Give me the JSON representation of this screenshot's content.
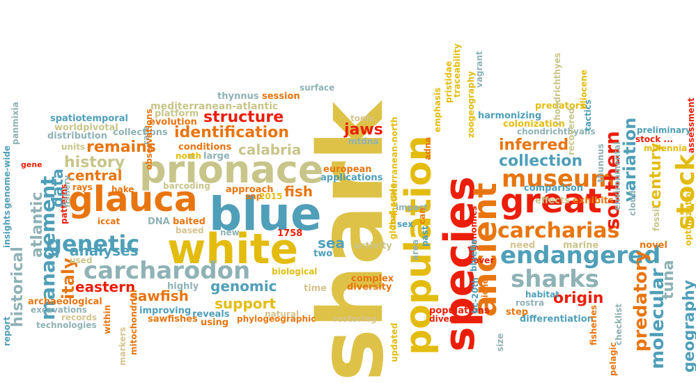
{
  "palette": {
    "yellow": "#E3BC0F",
    "mustard": "#DDC247",
    "orange": "#E8750F",
    "red": "#EB1E09",
    "teal": "#4F9FB8",
    "grayblue": "#8FB2B5",
    "khaki": "#C8C58A",
    "tan": "#D5C48F",
    "darkorange": "#D6640E",
    "slate": "#9FB6C0"
  },
  "words": [
    {
      "text": "shark",
      "color": "#DDC247",
      "rot": -90
    },
    {
      "text": "white",
      "color": "#E3BC0F",
      "rot": 0
    },
    {
      "text": "species",
      "color": "#EB1E09",
      "rot": -90
    },
    {
      "text": "prionace",
      "color": "#C8C58A",
      "rot": 0
    },
    {
      "text": "blue",
      "color": "#4F9FB8",
      "rot": 0
    },
    {
      "text": "glauca",
      "color": "#E8750F",
      "rot": 0
    },
    {
      "text": "population",
      "color": "#E3BC0F",
      "rot": -90
    },
    {
      "text": "great",
      "color": "#EB1E09",
      "rot": 0
    },
    {
      "text": "ancient",
      "color": "#E8750F",
      "rot": -90
    },
    {
      "text": "carcharodon",
      "color": "#8FB2B5",
      "rot": 0
    },
    {
      "text": "management",
      "color": "#4F9FB8",
      "rot": -90
    },
    {
      "text": "endangered",
      "color": "#4F9FB8",
      "rot": 0
    },
    {
      "text": "museum",
      "color": "#E8750F",
      "rot": 0
    },
    {
      "text": "carcharias",
      "color": "#E8750F",
      "rot": 0
    },
    {
      "text": "sharks",
      "color": "#8FB2B5",
      "rot": 0
    },
    {
      "text": "genetic",
      "color": "#4F9FB8",
      "rot": 0
    },
    {
      "text": "stock",
      "color": "#E3BC0F",
      "rot": -90
    },
    {
      "text": "historical",
      "color": "#8FB2B5",
      "rot": -90
    },
    {
      "text": "atlantic",
      "color": "#8FB2B5",
      "rot": -90
    },
    {
      "text": "geography",
      "color": "#4F9FB8",
      "rot": -90
    },
    {
      "text": "molecular",
      "color": "#4F9FB8",
      "rot": -90
    },
    {
      "text": "predatory",
      "color": "#E8750F",
      "rot": -90
    },
    {
      "text": "tuna",
      "color": "#8FB2B5",
      "rot": -90
    },
    {
      "text": "variation",
      "color": "#4F9FB8",
      "rot": -90
    },
    {
      "text": "southern",
      "color": "#EB1E09",
      "rot": -90
    },
    {
      "text": "century",
      "color": "#E3BC0F",
      "rot": -90
    },
    {
      "text": "structure",
      "color": "#EB1E09",
      "rot": 0
    },
    {
      "text": "identification",
      "color": "#E8750F",
      "rot": 0
    },
    {
      "text": "remains",
      "color": "#E8750F",
      "rot": 0
    },
    {
      "text": "calabria",
      "color": "#C8C58A",
      "rot": 0
    },
    {
      "text": "history",
      "color": "#C8C58A",
      "rot": 0
    },
    {
      "text": "central",
      "color": "#E8750F",
      "rot": 0
    },
    {
      "text": "analyses",
      "color": "#4F9FB8",
      "rot": 0
    },
    {
      "text": "eastern",
      "color": "#EB1E09",
      "rot": 0
    },
    {
      "text": "italy",
      "color": "#E8750F",
      "rot": -90
    },
    {
      "text": "data",
      "color": "#4F9FB8",
      "rot": -90
    },
    {
      "text": "sawfish",
      "color": "#E8750F",
      "rot": 0
    },
    {
      "text": "support",
      "color": "#E3BC0F",
      "rot": 0
    },
    {
      "text": "genomic",
      "color": "#4F9FB8",
      "rot": 0
    },
    {
      "text": "fish",
      "color": "#E8750F",
      "rot": 0
    },
    {
      "text": "sea",
      "color": "#4F9FB8",
      "rot": 0
    },
    {
      "text": "jaws",
      "color": "#EB1E09",
      "rot": 0
    },
    {
      "text": "inferred",
      "color": "#E8750F",
      "rot": 0
    },
    {
      "text": "collection",
      "color": "#4F9FB8",
      "rot": 0
    },
    {
      "text": "origin",
      "color": "#EB1E09",
      "rot": 0
    },
    {
      "text": "mediterranean-atlantic",
      "color": "#C8C58A",
      "rot": 0
    },
    {
      "text": "mediterranean-north",
      "color": "#E3BC0F",
      "rot": -90
    },
    {
      "text": "thynnus",
      "color": "#8FB2B5",
      "rot": 0
    },
    {
      "text": "session",
      "color": "#E8750F",
      "rot": 0
    },
    {
      "text": "surface",
      "color": "#8FB2B5",
      "rot": 0
    },
    {
      "text": "platform",
      "color": "#C8C58A",
      "rot": 0
    },
    {
      "text": "evolution",
      "color": "#E8750F",
      "rot": 0
    },
    {
      "text": "spatiotemporal",
      "color": "#4F9FB8",
      "rot": 0
    },
    {
      "text": "worldpivotal",
      "color": "#C8C58A",
      "rot": 0
    },
    {
      "text": "distribution",
      "color": "#8FB2B5",
      "rot": 0
    },
    {
      "text": "collections",
      "color": "#8FB2B5",
      "rot": 0
    },
    {
      "text": "units",
      "color": "#C8C58A",
      "rot": 0
    },
    {
      "text": "conditions",
      "color": "#E8750F",
      "rot": 0
    },
    {
      "text": "north",
      "color": "#E3BC0F",
      "rot": 0
    },
    {
      "text": "large",
      "color": "#8FB2B5",
      "rot": 0
    },
    {
      "text": "mtdna",
      "color": "#8FB2B5",
      "rot": 0
    },
    {
      "text": "tools",
      "color": "#D5C48F",
      "rot": 0
    },
    {
      "text": "european",
      "color": "#E8750F",
      "rot": 0
    },
    {
      "text": "applications",
      "color": "#4F9FB8",
      "rot": 0
    },
    {
      "text": "rays",
      "color": "#E8750F",
      "rot": 0
    },
    {
      "text": "barcoding",
      "color": "#C8C58A",
      "rot": 0
    },
    {
      "text": "approach",
      "color": "#E8750F",
      "rot": 0
    },
    {
      "text": "hake",
      "color": "#E8750F",
      "rot": 0
    },
    {
      "text": "snp",
      "color": "#E8750F",
      "rot": 0
    },
    {
      "text": "2015",
      "color": "#E3BC0F",
      "rot": 0
    },
    {
      "text": "iccat",
      "color": "#E8750F",
      "rot": 0
    },
    {
      "text": "DNA",
      "color": "#8FB2B5",
      "rot": 0
    },
    {
      "text": "baited",
      "color": "#E8750F",
      "rot": 0
    },
    {
      "text": "based",
      "color": "#D5C48F",
      "rot": 0
    },
    {
      "text": "new",
      "color": "#8FB2B5",
      "rot": 0
    },
    {
      "text": "1758",
      "color": "#EB1E09",
      "rot": 0
    },
    {
      "text": "two",
      "color": "#4F9FB8",
      "rot": 0
    },
    {
      "text": "activity",
      "color": "#C8C58A",
      "rot": 0
    },
    {
      "text": "used",
      "color": "#C8C58A",
      "rot": 0
    },
    {
      "text": "biological",
      "color": "#E3BC0F",
      "rot": 0
    },
    {
      "text": "highly",
      "color": "#8FB2B5",
      "rot": 0
    },
    {
      "text": "time",
      "color": "#D5C48F",
      "rot": 0
    },
    {
      "text": "complex",
      "color": "#E8750F",
      "rot": 0
    },
    {
      "text": "diversity",
      "color": "#E8750F",
      "rot": 0
    },
    {
      "text": "archaeological",
      "color": "#E8750F",
      "rot": 0
    },
    {
      "text": "excavations",
      "color": "#8FB2B5",
      "rot": 0
    },
    {
      "text": "records",
      "color": "#D5C48F",
      "rot": 0
    },
    {
      "text": "technologies",
      "color": "#8FB2B5",
      "rot": 0
    },
    {
      "text": "improving",
      "color": "#4F9FB8",
      "rot": 0
    },
    {
      "text": "sawfishes",
      "color": "#E8750F",
      "rot": 0
    },
    {
      "text": "reveals",
      "color": "#4F9FB8",
      "rot": 0
    },
    {
      "text": "using",
      "color": "#E8750F",
      "rot": 0
    },
    {
      "text": "natural",
      "color": "#D5C48F",
      "rot": 0
    },
    {
      "text": "phylogeographic",
      "color": "#E8750F",
      "rot": 0
    },
    {
      "text": "restoring",
      "color": "#D5C48F",
      "rot": 0
    },
    {
      "text": "harmonizing",
      "color": "#4F9FB8",
      "rot": 0
    },
    {
      "text": "colonization",
      "color": "#E3BC0F",
      "rot": 0
    },
    {
      "text": "predators",
      "color": "#E3BC0F",
      "rot": 0
    },
    {
      "text": "chondrichthyans",
      "color": "#8FB2B5",
      "rot": 0
    },
    {
      "text": "effects",
      "color": "#C8C58A",
      "rot": 0
    },
    {
      "text": "exhibits",
      "color": "#E8750F",
      "rot": 0
    },
    {
      "text": "comparison",
      "color": "#4F9FB8",
      "rot": 0
    },
    {
      "text": "need",
      "color": "#D5C48F",
      "rot": 0
    },
    {
      "text": "marine",
      "color": "#C8C58A",
      "rot": 0
    },
    {
      "text": "novel",
      "color": "#E8750F",
      "rot": 0
    },
    {
      "text": "habitat",
      "color": "#4F9FB8",
      "rot": 0
    },
    {
      "text": "rostra",
      "color": "#8FB2B5",
      "rot": 0
    },
    {
      "text": "step",
      "color": "#E8750F",
      "rot": 0
    },
    {
      "text": "differentiation",
      "color": "#4F9FB8",
      "rot": 0
    },
    {
      "text": "populations",
      "color": "#EB1E09",
      "rot": 0
    },
    {
      "text": "divergence",
      "color": "#EB1E09",
      "rot": 0
    },
    {
      "text": "preliminary",
      "color": "#4F9FB8",
      "rot": 0
    },
    {
      "text": "stock ...",
      "color": "#EB1E09",
      "rot": 0
    },
    {
      "text": "millennia",
      "color": "#E3BC0F",
      "rot": 0
    },
    {
      "text": "impact",
      "color": "#8FB2B5",
      "rot": 0
    },
    {
      "text": "sex",
      "color": "#4F9FB8",
      "rot": 0
    },
    {
      "text": "cover",
      "color": "#EB1E09",
      "rot": 0
    },
    {
      "text": "gene",
      "color": "#EB1E09",
      "rot": 0
    },
    {
      "text": "panmixia",
      "color": "#8FB2B5",
      "rot": -90
    },
    {
      "text": "insights",
      "color": "#4F9FB8",
      "rot": -90
    },
    {
      "text": "genome-wide",
      "color": "#4F9FB8",
      "rot": -90
    },
    {
      "text": "report",
      "color": "#4F9FB8",
      "rot": -90
    },
    {
      "text": "patterns",
      "color": "#EB1E09",
      "rot": -90
    },
    {
      "text": "fishery",
      "color": "#8FB2B5",
      "rot": -90
    },
    {
      "text": "rare",
      "color": "#8FB2B5",
      "rot": -90
    },
    {
      "text": "observations",
      "color": "#E8750F",
      "rot": -90
    },
    {
      "text": "within",
      "color": "#E8750F",
      "rot": -90
    },
    {
      "text": "markers",
      "color": "#D5C48F",
      "rot": -90
    },
    {
      "text": "mitochondrial",
      "color": "#E8750F",
      "rot": -90
    },
    {
      "text": "updated",
      "color": "#E3BC0F",
      "rot": -90
    },
    {
      "text": "global-scale",
      "color": "#E3BC0F",
      "rot": -90
    },
    {
      "text": "2nd",
      "color": "#E3BC0F",
      "rot": -90
    },
    {
      "text": "area",
      "color": "#8FB2B5",
      "rot": -90
    },
    {
      "text": "past",
      "color": "#4F9FB8",
      "rot": -90
    },
    {
      "text": "can",
      "color": "#E8750F",
      "rot": -90
    },
    {
      "text": "adna",
      "color": "#E8750F",
      "rot": -90
    },
    {
      "text": "emphasis",
      "color": "#E3BC0F",
      "rot": -90
    },
    {
      "text": "pristidae",
      "color": "#E3BC0F",
      "rot": -90
    },
    {
      "text": "traceability",
      "color": "#E3BC0F",
      "rot": -90
    },
    {
      "text": "vagrant",
      "color": "#8FB2B5",
      "rot": -90
    },
    {
      "text": "zoogeography",
      "color": "#E3BC0F",
      "rot": -90
    },
    {
      "text": "genomics",
      "color": "#EB1E09",
      "rot": -90
    },
    {
      "text": "bluefin",
      "color": "#4F9FB8",
      "rot": -90
    },
    {
      "text": "bc-20th",
      "color": "#4F9FB8",
      "rot": -90
    },
    {
      "text": "niche",
      "color": "#E8750F",
      "rot": -90
    },
    {
      "text": "size",
      "color": "#8FB2B5",
      "rot": -90
    },
    {
      "text": "chondrichthyes",
      "color": "#C8C58A",
      "rot": -90
    },
    {
      "text": "recovered",
      "color": "#C8C58A",
      "rot": -90
    },
    {
      "text": "pliocene",
      "color": "#E3BC0F",
      "rot": -90
    },
    {
      "text": "tactics",
      "color": "#4F9FB8",
      "rot": -90
    },
    {
      "text": "thunnus",
      "color": "#8FB2B5",
      "rot": -90
    },
    {
      "text": "environmental",
      "color": "#8FB2B5",
      "rot": -90
    },
    {
      "text": "cloud",
      "color": "#8FB2B5",
      "rot": -90
    },
    {
      "text": "fossil",
      "color": "#C8C58A",
      "rot": -90
    },
    {
      "text": "checklist",
      "color": "#8FB2B5",
      "rot": -90
    },
    {
      "text": "fisheries",
      "color": "#E8750F",
      "rot": -90
    },
    {
      "text": "pelagic",
      "color": "#E8750F",
      "rot": -90
    },
    {
      "text": "optimization",
      "color": "#E3BC0F",
      "rot": -90
    },
    {
      "text": "assessment",
      "color": "#EB1E09",
      "rot": -90
    },
    {
      "text": "visual",
      "color": "#E8750F",
      "rot": -90
    }
  ]
}
